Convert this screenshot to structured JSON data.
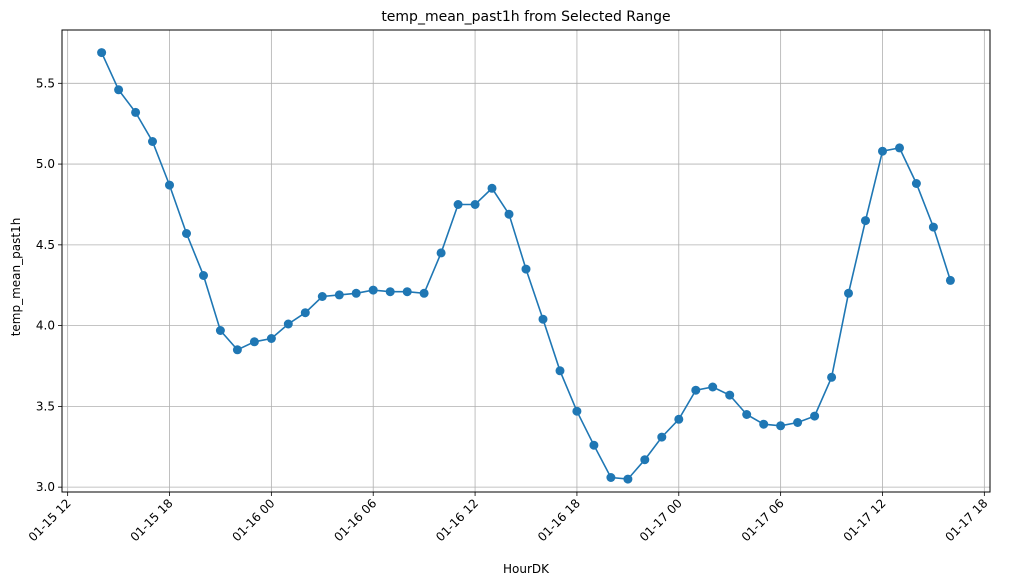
{
  "chart_data": {
    "type": "line",
    "title": "temp_mean_past1h from Selected Range",
    "xlabel": "HourDK",
    "ylabel": "temp_mean_past1h",
    "grid": true,
    "x_ticks": [
      "01-15 12",
      "01-15 18",
      "01-16 00",
      "01-16 06",
      "01-16 12",
      "01-16 18",
      "01-17 00",
      "01-17 06",
      "01-17 12",
      "01-17 18"
    ],
    "y_ticks": [
      "3.0",
      "3.5",
      "4.0",
      "4.5",
      "5.0",
      "5.5"
    ],
    "ylim": [
      2.97,
      5.83
    ],
    "xlim": [
      "2024-01-15 11:40",
      "2024-01-17 18:20"
    ],
    "colors": {
      "series": "#1f77b4",
      "grid": "#b0b0b0"
    },
    "series": [
      {
        "x": [
          "01-15 14",
          "01-15 15",
          "01-15 16",
          "01-15 17",
          "01-15 18",
          "01-15 19",
          "01-15 20",
          "01-15 21",
          "01-15 22",
          "01-15 23",
          "01-16 00",
          "01-16 01",
          "01-16 02",
          "01-16 03",
          "01-16 04",
          "01-16 05",
          "01-16 06",
          "01-16 07",
          "01-16 08",
          "01-16 09",
          "01-16 10",
          "01-16 11",
          "01-16 12",
          "01-16 13",
          "01-16 14",
          "01-16 15",
          "01-16 16",
          "01-16 17",
          "01-16 18",
          "01-16 19",
          "01-16 20",
          "01-16 21",
          "01-16 22",
          "01-16 23",
          "01-17 00",
          "01-17 01",
          "01-17 02",
          "01-17 03",
          "01-17 04",
          "01-17 05",
          "01-17 06",
          "01-17 07",
          "01-17 08",
          "01-17 09",
          "01-17 10",
          "01-17 11",
          "01-17 12",
          "01-17 13",
          "01-17 14",
          "01-17 15",
          "01-17 16"
        ],
        "values": [
          5.69,
          5.46,
          5.32,
          5.14,
          4.87,
          4.57,
          4.31,
          3.97,
          3.85,
          3.9,
          3.92,
          4.01,
          4.08,
          4.18,
          4.19,
          4.2,
          4.22,
          4.21,
          4.21,
          4.2,
          4.45,
          4.75,
          4.75,
          4.85,
          4.69,
          4.35,
          4.04,
          3.72,
          3.47,
          3.26,
          3.06,
          3.05,
          3.17,
          3.31,
          3.42,
          3.6,
          3.62,
          3.57,
          3.45,
          3.39,
          3.38,
          3.4,
          3.44,
          3.68,
          4.2,
          4.65,
          5.08,
          5.1,
          4.88,
          4.61,
          4.28
        ]
      }
    ]
  }
}
